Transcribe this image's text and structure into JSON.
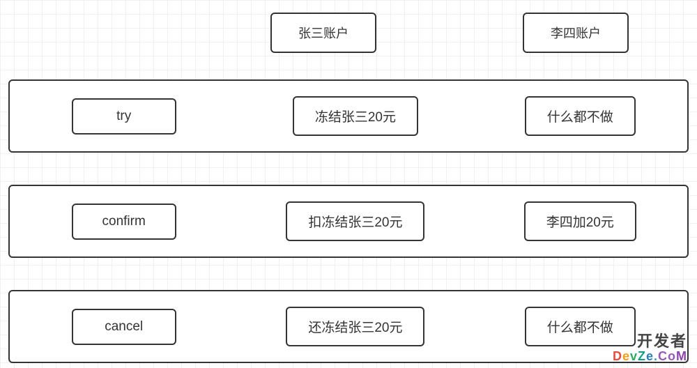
{
  "headers": {
    "account1": "张三账户",
    "account2": "李四账户"
  },
  "phases": [
    {
      "name": "try",
      "action1": "冻结张三20元",
      "action2": "什么都不做"
    },
    {
      "name": "confirm",
      "action1": "扣冻结张三20元",
      "action2": "李四加20元"
    },
    {
      "name": "cancel",
      "action1": "还冻结张三20元",
      "action2": "什么都不做"
    }
  ],
  "watermark": {
    "line1": "开发者",
    "line2": "DevZe.CoM"
  },
  "style": {
    "border_color": "#333333",
    "border_radius": 6,
    "grid_color": "#f0f0f0",
    "grid_size": 20,
    "background_color": "#ffffff",
    "font_size_header": 18,
    "font_size_cell": 19,
    "text_color": "#333333"
  }
}
